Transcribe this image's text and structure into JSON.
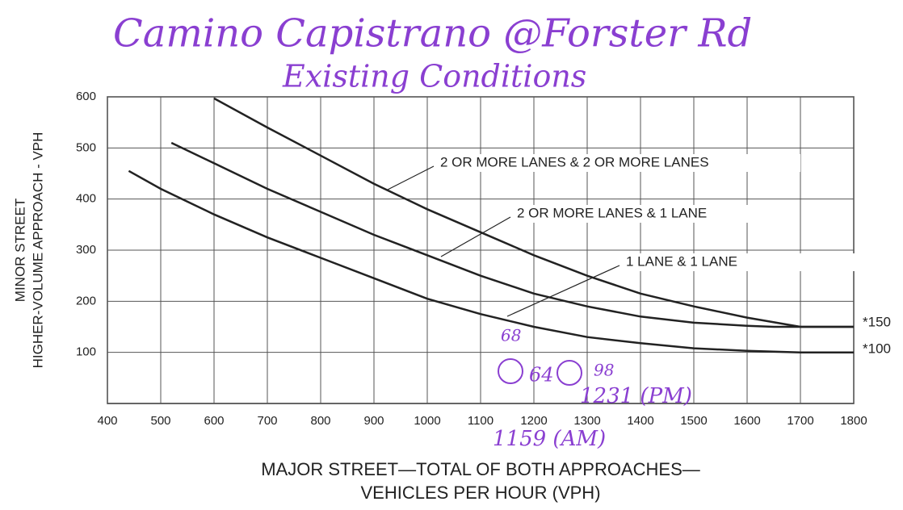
{
  "chart_data": {
    "type": "line",
    "title": "Camino Capistrano @Forster Rd",
    "subtitle": "Existing Conditions",
    "x_label": [
      "MAJOR STREET—TOTAL OF BOTH APPROACHES—",
      "VEHICLES PER HOUR (VPH)"
    ],
    "y_label": [
      "MINOR STREET",
      "HIGHER-VOLUME APPROACH - VPH"
    ],
    "xlim": [
      400,
      1800
    ],
    "ylim": [
      0,
      600
    ],
    "xticks": [
      400,
      500,
      600,
      700,
      800,
      900,
      1000,
      1100,
      1200,
      1300,
      1400,
      1500,
      1600,
      1700,
      1800
    ],
    "yticks": [
      100,
      200,
      300,
      400,
      500,
      600
    ],
    "grid": true,
    "series": [
      {
        "name": "2 OR MORE LANES & 2 OR MORE LANES",
        "color": "#222222",
        "x": [
          600,
          700,
          800,
          900,
          1000,
          1100,
          1200,
          1300,
          1400,
          1500,
          1600,
          1700,
          1800
        ],
        "values": [
          597,
          540,
          485,
          430,
          380,
          335,
          290,
          250,
          215,
          190,
          168,
          150,
          150
        ]
      },
      {
        "name": "2 OR MORE LANES & 1 LANE",
        "color": "#222222",
        "x": [
          520,
          600,
          700,
          800,
          900,
          1000,
          1100,
          1200,
          1300,
          1400,
          1500,
          1600,
          1650,
          1800
        ],
        "values": [
          510,
          470,
          420,
          375,
          330,
          290,
          250,
          215,
          190,
          170,
          158,
          152,
          150,
          150
        ]
      },
      {
        "name": "1 LANE & 1 LANE",
        "color": "#222222",
        "x": [
          440,
          500,
          600,
          700,
          800,
          900,
          1000,
          1100,
          1200,
          1300,
          1400,
          1500,
          1600,
          1700,
          1800
        ],
        "values": [
          455,
          420,
          370,
          325,
          285,
          245,
          205,
          175,
          150,
          130,
          118,
          108,
          103,
          100,
          100
        ]
      }
    ],
    "annotations": [
      "*150",
      "*100",
      "68",
      "64",
      "98",
      "1231 (PM)",
      "1159 (AM)"
    ]
  }
}
